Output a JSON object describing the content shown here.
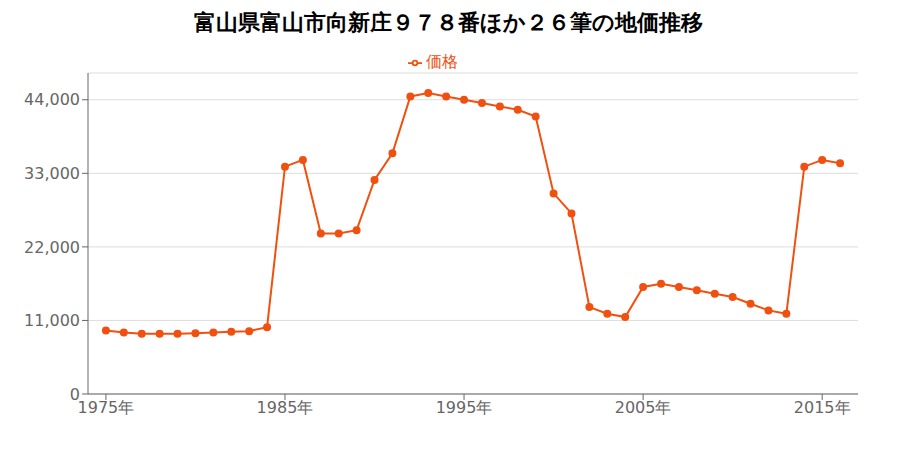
{
  "chart_data": {
    "type": "line",
    "title": "富山県富山市向新庄９７８番ほか２６筆の地価推移",
    "x": [
      1975,
      1976,
      1977,
      1978,
      1979,
      1980,
      1981,
      1982,
      1983,
      1984,
      1985,
      1986,
      1987,
      1988,
      1989,
      1990,
      1991,
      1992,
      1993,
      1994,
      1995,
      1996,
      1997,
      1998,
      1999,
      2000,
      2001,
      2002,
      2003,
      2004,
      2005,
      2006,
      2007,
      2008,
      2009,
      2010,
      2011,
      2012,
      2013,
      2014,
      2015,
      2016
    ],
    "series": [
      {
        "name": "価格",
        "color": "#f05010",
        "marker": "circle",
        "values": [
          9500,
          9200,
          9000,
          9000,
          9000,
          9100,
          9200,
          9300,
          9400,
          10000,
          34000,
          35000,
          24000,
          24000,
          24500,
          32000,
          36000,
          44500,
          45000,
          44500,
          44000,
          43500,
          43000,
          42500,
          41500,
          30000,
          27000,
          13000,
          12000,
          11500,
          16000,
          16500,
          16000,
          15500,
          15000,
          14500,
          13500,
          12500,
          12000,
          34000,
          35000,
          34500
        ]
      }
    ],
    "xlim": [
      1974,
      2017
    ],
    "xticks": [
      {
        "value": 1975,
        "label": "1975年"
      },
      {
        "value": 1985,
        "label": "1985年"
      },
      {
        "value": 1995,
        "label": "1995年"
      },
      {
        "value": 2005,
        "label": "2005年"
      },
      {
        "value": 2015,
        "label": "2015年"
      }
    ],
    "ylim": [
      0,
      48000
    ],
    "yticks": [
      0,
      {
        "value": 11000,
        "label": "11,000"
      },
      {
        "value": 22000,
        "label": "22,000"
      },
      {
        "value": 33000,
        "label": "33,000"
      },
      {
        "value": 44000,
        "label": "44,000"
      }
    ],
    "grid": "y",
    "legend": "top"
  }
}
